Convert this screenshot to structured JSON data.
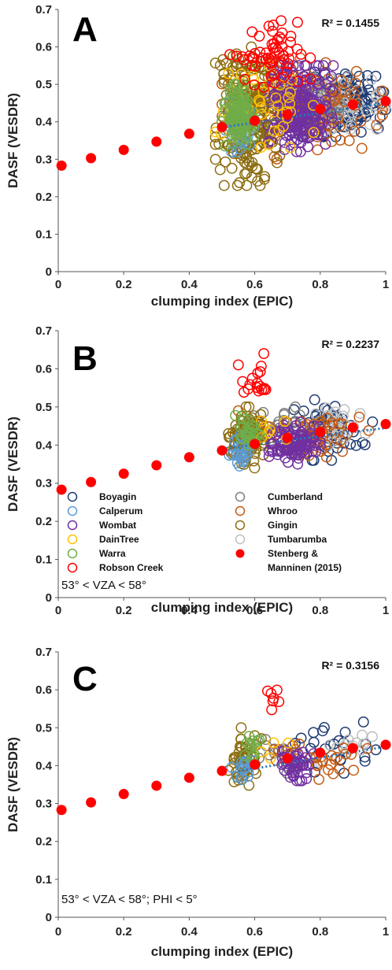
{
  "palette": {
    "Boyagin": "#1f3b73",
    "Calperum": "#5b9bd5",
    "Wombat": "#7030a0",
    "DainTree": "#ffc000",
    "Warra": "#70ad47",
    "Robson Creek": "#ff0000",
    "Cumberland": "#7f7f7f",
    "Whroo": "#c55a11",
    "Gingin": "#8c6d10",
    "Tumbarumba": "#bfbfbf",
    "Stenberg": "#ff0000",
    "trend": "#2e75b6"
  },
  "legend": {
    "left": [
      "Boyagin",
      "Calperum",
      "Wombat",
      "DainTree",
      "Warra",
      "Robson Creek"
    ],
    "right": [
      "Cumberland",
      "Whroo",
      "Gingin",
      "Tumbarumba"
    ],
    "stenberg_line1": "Stenberg &",
    "stenberg_line2": "Manninen (2015)"
  },
  "chart_data": [
    {
      "type": "scatter",
      "panel": "A",
      "r2": "R² = 0.1455",
      "condition": "",
      "xlabel": "clumping index (EPIC)",
      "ylabel": "DASF (VESDR)",
      "xlim": [
        0,
        1
      ],
      "ylim": [
        0,
        0.7
      ],
      "xticks": [
        "0",
        "0.2",
        "0.4",
        "0.6",
        "0.8",
        "1"
      ],
      "yticks": [
        "0",
        "0.1",
        "0.2",
        "0.3",
        "0.4",
        "0.5",
        "0.6",
        "0.7"
      ],
      "trend": [
        [
          0.5,
          0.385
        ],
        [
          1.0,
          0.45
        ]
      ],
      "reference": {
        "name": "Stenberg & Manninen (2015)",
        "x": [
          0.01,
          0.1,
          0.2,
          0.3,
          0.4,
          0.5,
          0.6,
          0.7,
          0.8,
          0.9,
          1.0
        ],
        "y": [
          0.283,
          0.303,
          0.325,
          0.347,
          0.368,
          0.386,
          0.403,
          0.419,
          0.434,
          0.446,
          0.455
        ]
      },
      "clusters": [
        {
          "site": "Boyagin",
          "n": 150,
          "x": [
            0.73,
            1.0
          ],
          "y": [
            0.36,
            0.54
          ],
          "seed": 11
        },
        {
          "site": "Tumbarumba",
          "n": 90,
          "x": [
            0.68,
            1.0
          ],
          "y": [
            0.38,
            0.53
          ],
          "seed": 12
        },
        {
          "site": "Cumberland",
          "n": 70,
          "x": [
            0.62,
            0.88
          ],
          "y": [
            0.38,
            0.52
          ],
          "seed": 13
        },
        {
          "site": "Whroo",
          "n": 120,
          "x": [
            0.5,
            0.99
          ],
          "y": [
            0.3,
            0.57
          ],
          "seed": 14
        },
        {
          "site": "Gingin",
          "n": 230,
          "x": [
            0.48,
            0.68
          ],
          "y": [
            0.23,
            0.6
          ],
          "seed": 15
        },
        {
          "site": "Wombat",
          "n": 230,
          "x": [
            0.64,
            0.84
          ],
          "y": [
            0.32,
            0.55
          ],
          "seed": 16
        },
        {
          "site": "Calperum",
          "n": 40,
          "x": [
            0.5,
            0.6
          ],
          "y": [
            0.32,
            0.47
          ],
          "seed": 17
        },
        {
          "site": "DainTree",
          "n": 45,
          "x": [
            0.48,
            0.78
          ],
          "y": [
            0.33,
            0.55
          ],
          "seed": 18
        },
        {
          "site": "Warra",
          "n": 100,
          "x": [
            0.5,
            0.6
          ],
          "y": [
            0.33,
            0.5
          ],
          "seed": 19
        },
        {
          "site": "Robson Creek",
          "n": 60,
          "x": [
            0.52,
            0.77
          ],
          "y": [
            0.47,
            0.67
          ],
          "seed": 20
        }
      ]
    },
    {
      "type": "scatter",
      "panel": "B",
      "r2": "R² = 0.2237",
      "condition": "53° < VZA < 58°",
      "xlabel": "clumping index (EPIC)",
      "ylabel": "DASF (VESDR)",
      "xlim": [
        0,
        1
      ],
      "ylim": [
        0,
        0.7
      ],
      "xticks": [
        "0",
        "0.2",
        "0.4",
        "0.6",
        "0.8",
        "1"
      ],
      "yticks": [
        "0",
        "0.1",
        "0.2",
        "0.3",
        "0.4",
        "0.5",
        "0.6",
        "0.7"
      ],
      "trend": [
        [
          0.5,
          0.39
        ],
        [
          1.0,
          0.445
        ]
      ],
      "reference": {
        "name": "Stenberg & Manninen (2015)",
        "x": [
          0.01,
          0.1,
          0.2,
          0.3,
          0.4,
          0.5,
          0.6,
          0.7,
          0.8,
          0.9,
          1.0
        ],
        "y": [
          0.283,
          0.303,
          0.325,
          0.347,
          0.368,
          0.386,
          0.403,
          0.419,
          0.434,
          0.446,
          0.455
        ]
      },
      "clusters": [
        {
          "site": "Boyagin",
          "n": 50,
          "x": [
            0.72,
            0.96
          ],
          "y": [
            0.36,
            0.52
          ],
          "seed": 31
        },
        {
          "site": "Tumbarumba",
          "n": 30,
          "x": [
            0.7,
            0.99
          ],
          "y": [
            0.4,
            0.5
          ],
          "seed": 32
        },
        {
          "site": "Cumberland",
          "n": 30,
          "x": [
            0.58,
            0.82
          ],
          "y": [
            0.38,
            0.5
          ],
          "seed": 33
        },
        {
          "site": "Whroo",
          "n": 60,
          "x": [
            0.55,
            0.98
          ],
          "y": [
            0.35,
            0.49
          ],
          "seed": 34
        },
        {
          "site": "Gingin",
          "n": 110,
          "x": [
            0.52,
            0.63
          ],
          "y": [
            0.34,
            0.5
          ],
          "seed": 35
        },
        {
          "site": "Wombat",
          "n": 100,
          "x": [
            0.64,
            0.8
          ],
          "y": [
            0.35,
            0.46
          ],
          "seed": 36
        },
        {
          "site": "Calperum",
          "n": 25,
          "x": [
            0.52,
            0.6
          ],
          "y": [
            0.34,
            0.43
          ],
          "seed": 37
        },
        {
          "site": "DainTree",
          "n": 8,
          "x": [
            0.6,
            0.72
          ],
          "y": [
            0.38,
            0.49
          ],
          "seed": 38
        },
        {
          "site": "Warra",
          "n": 30,
          "x": [
            0.54,
            0.62
          ],
          "y": [
            0.4,
            0.48
          ],
          "seed": 39
        },
        {
          "site": "Robson Creek",
          "n": 18,
          "x": [
            0.55,
            0.69
          ],
          "y": [
            0.48,
            0.64
          ],
          "seed": 40
        }
      ]
    },
    {
      "type": "scatter",
      "panel": "C",
      "r2": "R² = 0.3156",
      "condition": "53° < VZA < 58°; PHI < 5°",
      "xlabel": "clumping index (EPIC)",
      "ylabel": "DASF (VESDR)",
      "xlim": [
        0,
        1
      ],
      "ylim": [
        0,
        0.7
      ],
      "xticks": [
        "0",
        "0.2",
        "0.4",
        "0.6",
        "0.8",
        "1"
      ],
      "yticks": [
        "0",
        "0.1",
        "0.2",
        "0.3",
        "0.4",
        "0.5",
        "0.6",
        "0.7"
      ],
      "trend": [
        [
          0.55,
          0.385
        ],
        [
          1.0,
          0.45
        ]
      ],
      "reference": {
        "name": "Stenberg & Manninen (2015)",
        "x": [
          0.01,
          0.1,
          0.2,
          0.3,
          0.4,
          0.5,
          0.6,
          0.7,
          0.8,
          0.9,
          1.0
        ],
        "y": [
          0.283,
          0.303,
          0.325,
          0.347,
          0.368,
          0.386,
          0.403,
          0.419,
          0.434,
          0.446,
          0.455
        ]
      },
      "clusters": [
        {
          "site": "Boyagin",
          "n": 22,
          "x": [
            0.72,
            0.97
          ],
          "y": [
            0.38,
            0.52
          ],
          "seed": 51
        },
        {
          "site": "Tumbarumba",
          "n": 14,
          "x": [
            0.72,
            0.99
          ],
          "y": [
            0.41,
            0.49
          ],
          "seed": 52
        },
        {
          "site": "Cumberland",
          "n": 14,
          "x": [
            0.6,
            0.78
          ],
          "y": [
            0.38,
            0.47
          ],
          "seed": 53
        },
        {
          "site": "Whroo",
          "n": 32,
          "x": [
            0.55,
            0.97
          ],
          "y": [
            0.35,
            0.47
          ],
          "seed": 54
        },
        {
          "site": "Gingin",
          "n": 55,
          "x": [
            0.52,
            0.62
          ],
          "y": [
            0.34,
            0.5
          ],
          "seed": 55
        },
        {
          "site": "Wombat",
          "n": 45,
          "x": [
            0.66,
            0.78
          ],
          "y": [
            0.36,
            0.45
          ],
          "seed": 56
        },
        {
          "site": "Calperum",
          "n": 14,
          "x": [
            0.53,
            0.6
          ],
          "y": [
            0.34,
            0.43
          ],
          "seed": 57
        },
        {
          "site": "DainTree",
          "n": 4,
          "x": [
            0.62,
            0.72
          ],
          "y": [
            0.4,
            0.49
          ],
          "seed": 58
        },
        {
          "site": "Warra",
          "n": 12,
          "x": [
            0.55,
            0.62
          ],
          "y": [
            0.42,
            0.48
          ],
          "seed": 59
        },
        {
          "site": "Robson Creek",
          "n": 7,
          "x": [
            0.63,
            0.69
          ],
          "y": [
            0.53,
            0.61
          ],
          "seed": 60
        }
      ]
    }
  ]
}
